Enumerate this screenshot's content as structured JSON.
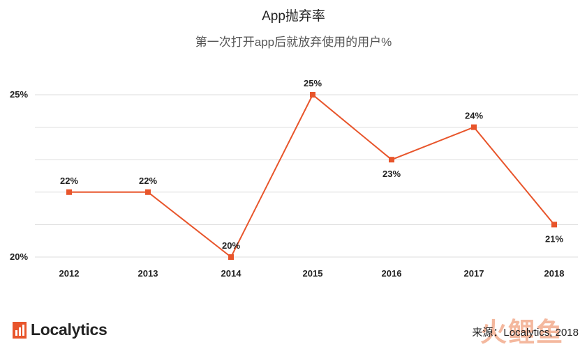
{
  "header": {
    "title": "App抛弃率",
    "subtitle": "第一次打开app后就放弃使用的用户%"
  },
  "chart_data": {
    "type": "line",
    "title": "App抛弃率",
    "subtitle": "第一次打开app后就放弃使用的用户%",
    "categories": [
      "2012",
      "2013",
      "2014",
      "2015",
      "2016",
      "2017",
      "2018"
    ],
    "series": [
      {
        "values": [
          22,
          22,
          20,
          25,
          23,
          24,
          21
        ],
        "labels": [
          "22%",
          "22%",
          "20%",
          "25%",
          "23%",
          "24%",
          "21%"
        ],
        "label_positions": [
          "above",
          "above",
          "above",
          "above",
          "below",
          "above",
          "below"
        ],
        "color": "#e8552b"
      }
    ],
    "ylim": [
      20,
      25
    ],
    "yticks": [
      20,
      25
    ],
    "ytick_labels": [
      "20%",
      "25%"
    ],
    "gridlines": [
      20,
      21,
      22,
      23,
      24,
      25
    ],
    "grid": true,
    "legend": "none"
  },
  "footer": {
    "logo_text": "Localytics",
    "source": "来源：Localytics, 2018",
    "watermark": "火鲤鱼"
  },
  "colors": {
    "line": "#e8552b",
    "logo_mark": "#e8552b",
    "grid": "#dddddd"
  }
}
